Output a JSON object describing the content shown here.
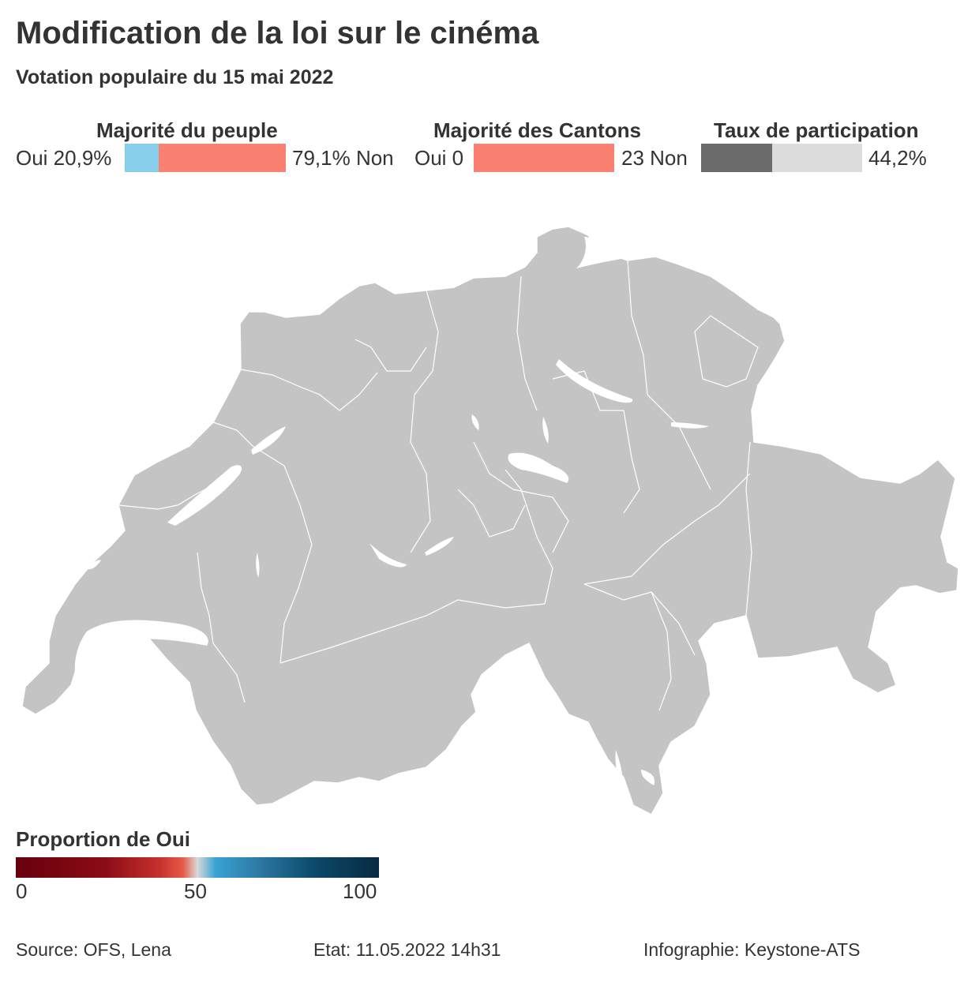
{
  "header": {
    "title": "Modification de la loi sur le cinéma",
    "subtitle": "Votation populaire du 15 mai 2022"
  },
  "popular_majority": {
    "title": "Majorité du peuple",
    "yes_label": "Oui 20,9%",
    "no_label": "79,1% Non",
    "yes_share": 20.9,
    "no_share": 79.1
  },
  "canton_majority": {
    "title": "Majorité des Cantons",
    "yes_label": "Oui 0",
    "no_label": "23 Non",
    "yes_count": 0,
    "no_count": 23
  },
  "turnout": {
    "title": "Taux de participation",
    "value_label": "44,2%",
    "value": 44.2
  },
  "map": {
    "country": "Switzerland",
    "fill_color": "#c4c4c4",
    "border_color": "#ffffff",
    "lake_color": "#ffffff"
  },
  "legend": {
    "title": "Proportion de Oui",
    "ticks": [
      "0",
      "50",
      "100"
    ]
  },
  "colors": {
    "yes": "#87ceeb",
    "no": "#fa8072",
    "turnout_filled": "#6b6b6b",
    "turnout_rest": "#dcdcdc",
    "text": "#333333"
  },
  "footer": {
    "source": "Source: OFS, Lena",
    "status": "Etat: 11.05.2022 14h31",
    "credit": "Infographie: Keystone-ATS"
  }
}
